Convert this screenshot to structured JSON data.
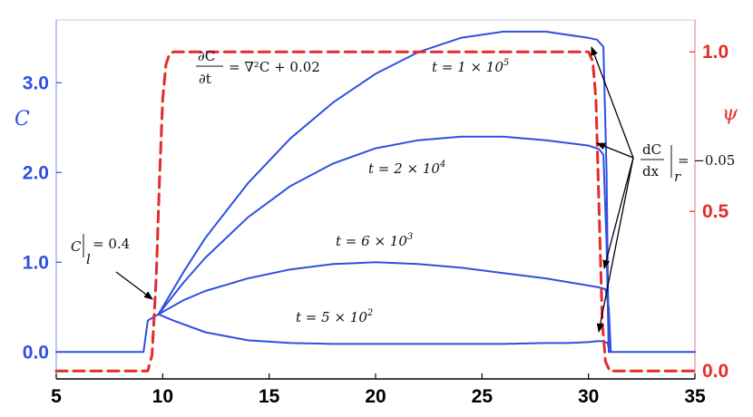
{
  "chart_data": {
    "type": "line",
    "xlim": [
      5,
      35
    ],
    "ylim_left": [
      -0.3,
      3.7
    ],
    "ylim_right": [
      -0.025,
      1.1
    ],
    "x_ticks": [
      "5",
      "10",
      "15",
      "20",
      "25",
      "30",
      "35"
    ],
    "y_left_ticks": [
      "0.0",
      "1.0",
      "2.0",
      "3.0"
    ],
    "y_right_ticks": [
      "0.0",
      "0.5",
      "1.0"
    ],
    "ylabel_left": "C",
    "ylabel_right": "ψ",
    "grid": false,
    "colors": {
      "concentration": "#2f4fe0",
      "psi": "#e52b2b",
      "axis": "#000000"
    },
    "series": [
      {
        "label": "t = 5 × 10²",
        "axis": "left",
        "x": [
          5,
          9.1,
          9.3,
          9.8,
          10.5,
          12,
          14,
          16,
          18,
          20,
          22,
          24,
          26,
          28,
          29,
          30,
          30.4,
          30.7,
          30.9,
          31.0,
          31.1,
          35
        ],
        "y": [
          0,
          0,
          0.35,
          0.42,
          0.35,
          0.22,
          0.13,
          0.1,
          0.09,
          0.09,
          0.09,
          0.09,
          0.09,
          0.1,
          0.1,
          0.11,
          0.12,
          0.12,
          0.1,
          0.0,
          0.0,
          0.0
        ]
      },
      {
        "label": "t = 6 × 10³",
        "axis": "left",
        "x": [
          9.8,
          11,
          12,
          14,
          16,
          18,
          20,
          22,
          24,
          26,
          28,
          30,
          30.5,
          30.8,
          30.95,
          31.05
        ],
        "y": [
          0.42,
          0.58,
          0.68,
          0.82,
          0.92,
          0.98,
          1.0,
          0.98,
          0.94,
          0.88,
          0.82,
          0.74,
          0.72,
          0.7,
          0.5,
          0.0
        ]
      },
      {
        "label": "t = 2 × 10⁴",
        "axis": "left",
        "x": [
          9.8,
          11,
          12,
          14,
          16,
          18,
          20,
          22,
          24,
          26,
          28,
          30,
          30.5,
          30.7,
          30.85,
          30.95
        ],
        "y": [
          0.42,
          0.78,
          1.05,
          1.5,
          1.85,
          2.1,
          2.27,
          2.36,
          2.4,
          2.4,
          2.36,
          2.3,
          2.26,
          2.2,
          1.2,
          0.0
        ]
      },
      {
        "label": "t = 1 × 10⁵",
        "axis": "left",
        "x": [
          9.8,
          11,
          12,
          14,
          16,
          18,
          20,
          22,
          24,
          26,
          28,
          30,
          30.4,
          30.7,
          30.85,
          30.95
        ],
        "y": [
          0.42,
          0.9,
          1.27,
          1.88,
          2.38,
          2.78,
          3.1,
          3.34,
          3.5,
          3.57,
          3.57,
          3.5,
          3.48,
          3.4,
          2.0,
          0.0
        ]
      },
      {
        "label": "ψ",
        "axis": "right",
        "style": "dashed",
        "x": [
          5,
          9.3,
          9.5,
          9.7,
          9.85,
          10.0,
          10.15,
          10.3,
          10.5,
          30.0,
          30.2,
          30.35,
          30.5,
          30.65,
          30.8,
          31.0,
          35
        ],
        "y": [
          0.0,
          0.0,
          0.05,
          0.3,
          0.6,
          0.85,
          0.96,
          0.99,
          1.0,
          1.0,
          0.97,
          0.85,
          0.5,
          0.15,
          0.03,
          0.0,
          0.0
        ]
      }
    ],
    "annotations": {
      "equation": {
        "numerator": "∂C",
        "denominator": "∂t",
        "rhs": "= ∇²C + 0.02"
      },
      "left_bc": {
        "symbol": "C",
        "subscript": "l",
        "rhs": "= 0.4"
      },
      "right_bc": {
        "numerator": "dC",
        "denominator": "dx",
        "subscript": "r",
        "rhs": "= −0.05"
      },
      "labels": [
        {
          "series": 3,
          "text": "t = 1 × 10",
          "exp": "5"
        },
        {
          "series": 2,
          "text": "t = 2 × 10",
          "exp": "4"
        },
        {
          "series": 1,
          "text": "t = 6 × 10",
          "exp": "3"
        },
        {
          "series": 0,
          "text": "t = 5 × 10",
          "exp": "2"
        }
      ]
    }
  }
}
